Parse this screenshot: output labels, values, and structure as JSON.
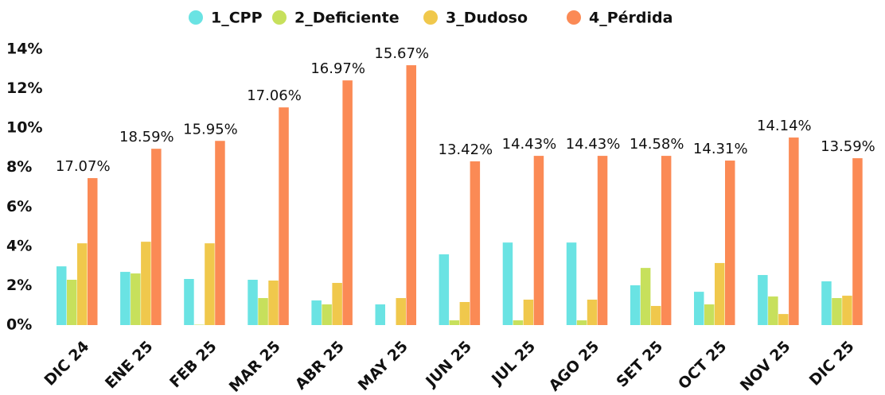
{
  "chart_data": {
    "type": "bar",
    "categories": [
      "DIC 24",
      "ENE 25",
      "FEB 25",
      "MAR 25",
      "ABR 25",
      "MAY 25",
      "JUN 25",
      "JUL 25",
      "AGO 25",
      "SET 25",
      "OCT 25",
      "NOV 25",
      "DIC 25"
    ],
    "series": [
      {
        "name": "1_CPP",
        "color": "#6ae3e3",
        "values": [
          2.98,
          2.7,
          2.34,
          2.3,
          1.25,
          1.05,
          3.59,
          4.19,
          4.19,
          2.02,
          1.69,
          2.54,
          2.22
        ]
      },
      {
        "name": "2_Deficiente",
        "color": "#c7e05c",
        "values": [
          2.3,
          2.62,
          0.02,
          1.37,
          1.05,
          0,
          0.24,
          0.24,
          0.24,
          2.9,
          1.05,
          1.45,
          1.37
        ]
      },
      {
        "name": "3_Dudoso",
        "color": "#f0c84c",
        "values": [
          4.15,
          4.23,
          4.15,
          2.26,
          2.14,
          1.37,
          1.17,
          1.29,
          1.29,
          0.97,
          3.15,
          0.56,
          1.49
        ]
      },
      {
        "name": "4_Pérdida",
        "color": "#fb8a55",
        "values": [
          7.46,
          8.95,
          9.35,
          11.05,
          12.42,
          13.19,
          8.31,
          8.59,
          8.59,
          8.59,
          8.35,
          9.52,
          8.47
        ]
      }
    ],
    "annotations": [
      "17.07%",
      "18.59%",
      "15.95%",
      "17.06%",
      "16.97%",
      "15.67%",
      "13.42%",
      "14.43%",
      "14.43%",
      "14.58%",
      "14.31%",
      "14.14%",
      "13.59%"
    ],
    "ylim": [
      0,
      14
    ],
    "yticks": [
      {
        "value": 0,
        "label": "0%"
      },
      {
        "value": 2,
        "label": "2%"
      },
      {
        "value": 4,
        "label": "4%"
      },
      {
        "value": 6,
        "label": "6%"
      },
      {
        "value": 8,
        "label": "8%"
      },
      {
        "value": 10,
        "label": "10%"
      },
      {
        "value": 12,
        "label": "12%"
      },
      {
        "value": 14,
        "label": "14%"
      }
    ],
    "grid": false,
    "legend": "top"
  }
}
